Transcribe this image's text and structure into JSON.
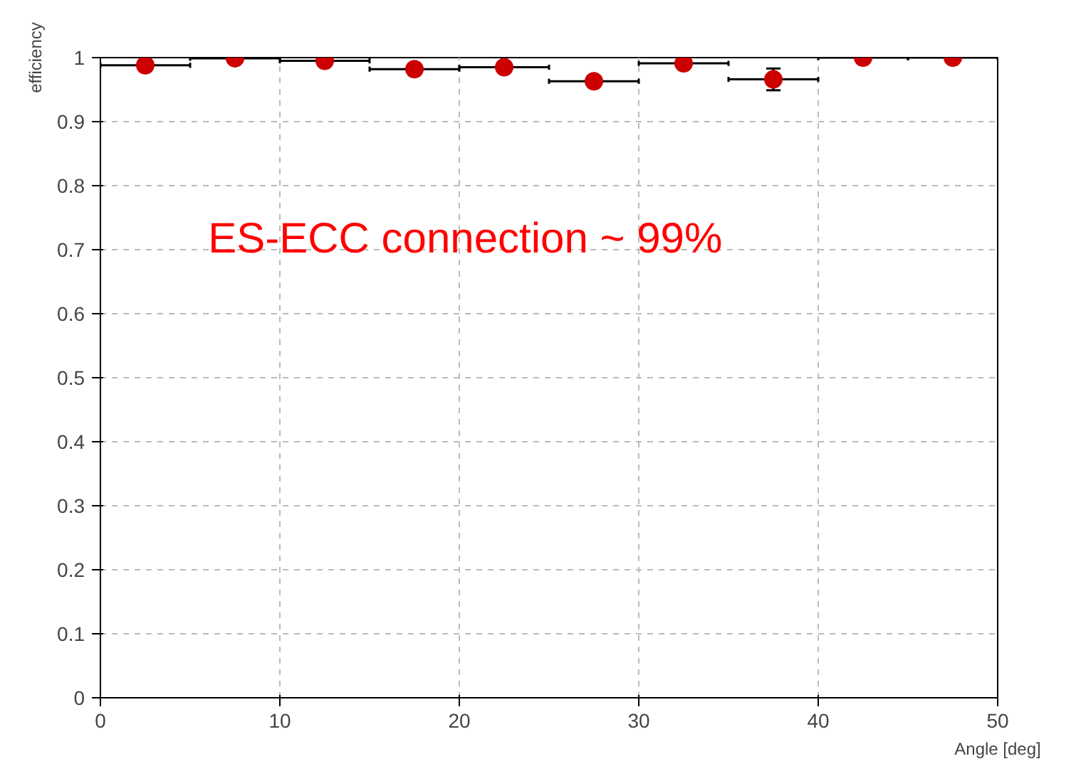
{
  "chart_data": {
    "type": "scatter",
    "xlabel": "Angle [deg]",
    "ylabel": "efficiency",
    "annotations": [
      "ES-ECC connection ~ 99%"
    ],
    "x": [
      2.5,
      7.5,
      12.5,
      17.5,
      22.5,
      27.5,
      32.5,
      37.5,
      42.5,
      47.5
    ],
    "series": [
      {
        "color": "#cc0000",
        "values": [
          0.988,
          0.999,
          0.995,
          0.982,
          0.985,
          0.963,
          0.991,
          0.966,
          1.0,
          1.0
        ],
        "xerrors": [
          2.5,
          2.5,
          2.5,
          2.5,
          2.5,
          2.5,
          2.5,
          2.5,
          2.5,
          2.5
        ],
        "errors": [
          null,
          null,
          null,
          null,
          null,
          null,
          null,
          0.017,
          null,
          null
        ]
      }
    ],
    "xlim": [
      0,
      50
    ],
    "ylim": [
      0,
      1.0
    ],
    "xticks": [
      0,
      10,
      20,
      30,
      40,
      50
    ],
    "yticks": [
      0,
      0.1,
      0.2,
      0.3,
      0.4,
      0.5,
      0.6,
      0.7,
      0.8,
      0.9,
      1
    ],
    "grid": true,
    "marker": "circle"
  }
}
